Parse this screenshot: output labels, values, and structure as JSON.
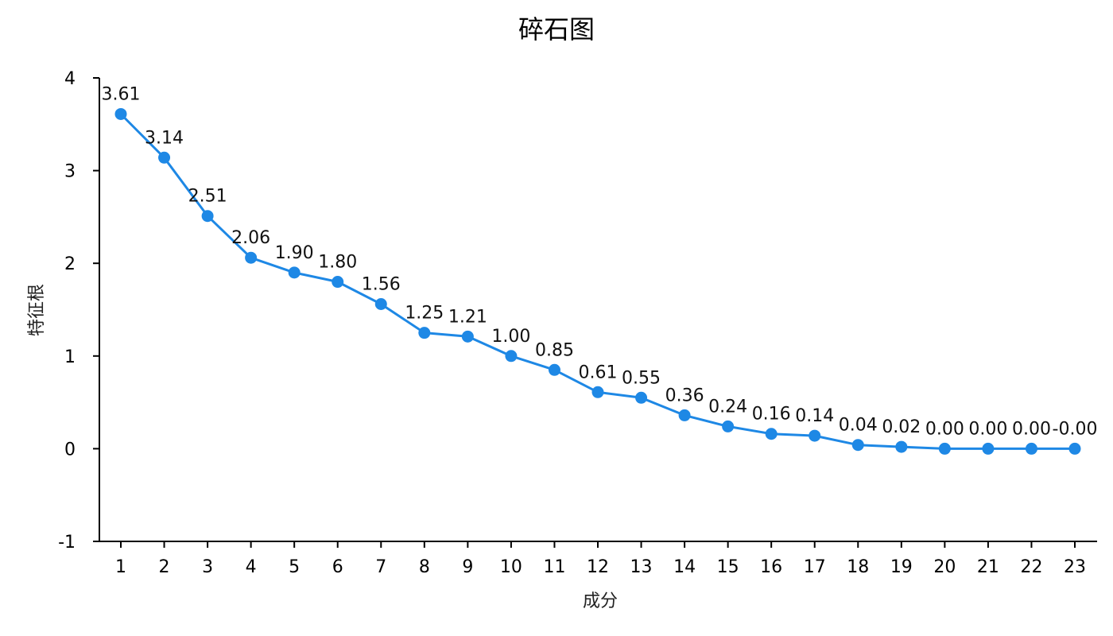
{
  "chart_data": {
    "type": "line",
    "title": "碎石图",
    "xlabel": "成分",
    "ylabel": "特征根",
    "ylim": [
      -1,
      4
    ],
    "yticks": [
      -1,
      0,
      1,
      2,
      3,
      4
    ],
    "grid": false,
    "legend": "none",
    "colors": {
      "series": "#1e88e5",
      "axis": "#000000"
    },
    "x": [
      1,
      2,
      3,
      4,
      5,
      6,
      7,
      8,
      9,
      10,
      11,
      12,
      13,
      14,
      15,
      16,
      17,
      18,
      19,
      20,
      21,
      22,
      23
    ],
    "series": [
      {
        "values": [
          3.61,
          3.14,
          2.51,
          2.06,
          1.9,
          1.8,
          1.56,
          1.25,
          1.21,
          1.0,
          0.85,
          0.61,
          0.55,
          0.36,
          0.24,
          0.16,
          0.14,
          0.04,
          0.02,
          0.0,
          0.0,
          0.0,
          0.0
        ],
        "labels": [
          "3.61",
          "3.14",
          "2.51",
          "2.06",
          "1.90",
          "1.80",
          "1.56",
          "1.25",
          "1.21",
          "1.00",
          "0.85",
          "0.61",
          "0.55",
          "0.36",
          "0.24",
          "0.16",
          "0.14",
          "0.04",
          "0.02",
          "0.00",
          "0.00",
          "0.00",
          "-0.00"
        ]
      }
    ]
  }
}
